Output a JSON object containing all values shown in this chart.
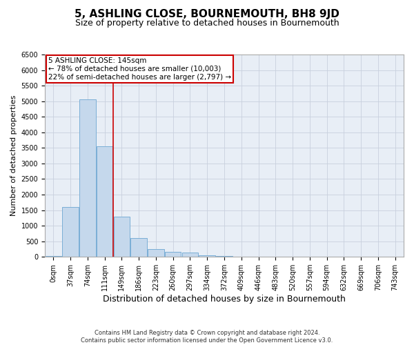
{
  "title": "5, ASHLING CLOSE, BOURNEMOUTH, BH8 9JD",
  "subtitle": "Size of property relative to detached houses in Bournemouth",
  "xlabel": "Distribution of detached houses by size in Bournemouth",
  "ylabel": "Number of detached properties",
  "footer_line1": "Contains HM Land Registry data © Crown copyright and database right 2024.",
  "footer_line2": "Contains public sector information licensed under the Open Government Licence v3.0.",
  "categories": [
    "0sqm",
    "37sqm",
    "74sqm",
    "111sqm",
    "149sqm",
    "186sqm",
    "223sqm",
    "260sqm",
    "297sqm",
    "334sqm",
    "372sqm",
    "409sqm",
    "446sqm",
    "483sqm",
    "520sqm",
    "557sqm",
    "594sqm",
    "632sqm",
    "669sqm",
    "706sqm",
    "743sqm"
  ],
  "values": [
    30,
    1600,
    5050,
    3550,
    1300,
    600,
    250,
    160,
    130,
    60,
    30,
    10,
    0,
    0,
    0,
    0,
    0,
    0,
    0,
    0,
    0
  ],
  "ylim": [
    0,
    6500
  ],
  "yticks": [
    0,
    500,
    1000,
    1500,
    2000,
    2500,
    3000,
    3500,
    4000,
    4500,
    5000,
    5500,
    6000,
    6500
  ],
  "bar_color": "#c5d8ec",
  "bar_edge_color": "#7aaed6",
  "grid_color": "#c8d0de",
  "background_color": "#e8eef6",
  "property_label": "5 ASHLING CLOSE: 145sqm",
  "annotation_line1": "← 78% of detached houses are smaller (10,003)",
  "annotation_line2": "22% of semi-detached houses are larger (2,797) →",
  "annotation_box_color": "#cc0000",
  "line_color": "#cc0000",
  "title_fontsize": 11,
  "subtitle_fontsize": 9,
  "tick_fontsize": 7,
  "ylabel_fontsize": 8,
  "xlabel_fontsize": 9,
  "annotation_fontsize": 7.5,
  "footer_fontsize": 6
}
